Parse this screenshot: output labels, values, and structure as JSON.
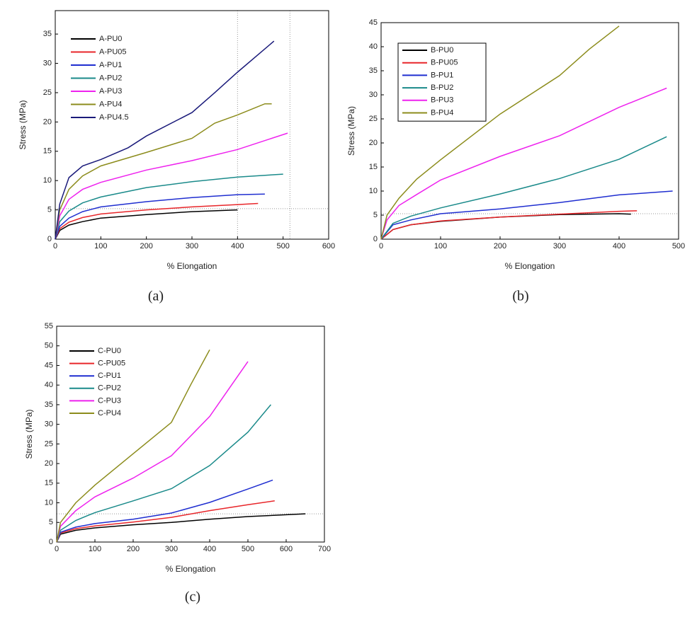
{
  "chart_data": [
    {
      "type": "line",
      "caption": "(a)",
      "x_label": "% Elongation",
      "y_label": "Stress (MPa)",
      "xlim": [
        0,
        600
      ],
      "xticks": [
        0,
        100,
        200,
        300,
        400,
        500,
        600
      ],
      "ylim": [
        0,
        39
      ],
      "yticks": [
        0,
        5,
        10,
        15,
        20,
        25,
        30,
        35
      ],
      "legend": "upper left",
      "legend_frame": false,
      "ref_lines": [
        {
          "axis": "x",
          "value": 400
        },
        {
          "axis": "x",
          "value": 515
        },
        {
          "axis": "y",
          "value": 5.2
        }
      ],
      "series": [
        {
          "name": "A-PU0",
          "color": "#000000",
          "x": [
            0,
            10,
            30,
            60,
            100,
            200,
            300,
            400
          ],
          "values": [
            0,
            1.5,
            2.4,
            3.0,
            3.6,
            4.2,
            4.7,
            5.0
          ]
        },
        {
          "name": "A-PU05",
          "color": "#e8262a",
          "x": [
            0,
            10,
            30,
            60,
            100,
            200,
            300,
            400,
            445
          ],
          "values": [
            0,
            1.8,
            2.9,
            3.7,
            4.3,
            5.0,
            5.5,
            5.9,
            6.1
          ]
        },
        {
          "name": "A-PU1",
          "color": "#1f2ed0",
          "x": [
            0,
            10,
            30,
            60,
            100,
            200,
            300,
            400,
            460
          ],
          "values": [
            0,
            2.2,
            3.6,
            4.7,
            5.5,
            6.4,
            7.1,
            7.6,
            7.7
          ]
        },
        {
          "name": "A-PU2",
          "color": "#1a8a8a",
          "x": [
            0,
            10,
            30,
            60,
            100,
            200,
            300,
            400,
            500
          ],
          "values": [
            0,
            3,
            4.8,
            6.2,
            7.2,
            8.8,
            9.8,
            10.6,
            11.1
          ]
        },
        {
          "name": "A-PU3",
          "color": "#ee22ee",
          "x": [
            0,
            10,
            30,
            60,
            100,
            200,
            300,
            400,
            510
          ],
          "values": [
            0,
            4,
            6.8,
            8.5,
            9.7,
            11.8,
            13.4,
            15.3,
            18.1
          ]
        },
        {
          "name": "A-PU4",
          "color": "#8c8c1c",
          "x": [
            0,
            10,
            30,
            60,
            100,
            200,
            300,
            350,
            400,
            460,
            475
          ],
          "values": [
            0,
            5,
            8.5,
            10.8,
            12.5,
            14.8,
            17.2,
            19.8,
            21.2,
            23.1,
            23.1
          ]
        },
        {
          "name": "A-PU4.5",
          "color": "#1a1a7a",
          "x": [
            0,
            10,
            30,
            60,
            100,
            160,
            200,
            300,
            350,
            400,
            480
          ],
          "values": [
            0,
            6,
            10.5,
            12.5,
            13.6,
            15.6,
            17.6,
            21.6,
            25,
            28.5,
            33.8
          ]
        }
      ]
    },
    {
      "type": "line",
      "caption": "(b)",
      "x_label": "% Elongation",
      "y_label": "Stress (MPa)",
      "xlim": [
        0,
        500
      ],
      "xticks": [
        0,
        100,
        200,
        300,
        400,
        500
      ],
      "ylim": [
        0,
        45
      ],
      "yticks": [
        0,
        5,
        10,
        15,
        20,
        25,
        30,
        35,
        40,
        45
      ],
      "legend": "upper left",
      "legend_frame": true,
      "ref_lines": [
        {
          "axis": "y",
          "value": 5.3
        }
      ],
      "series": [
        {
          "name": "B-PU0",
          "color": "#000000",
          "x": [
            0,
            20,
            50,
            100,
            200,
            300,
            400,
            420
          ],
          "values": [
            0,
            2,
            3,
            3.7,
            4.6,
            5.1,
            5.3,
            5.2
          ]
        },
        {
          "name": "B-PU05",
          "color": "#e8262a",
          "x": [
            0,
            20,
            50,
            100,
            200,
            300,
            400,
            430
          ],
          "values": [
            0,
            2,
            3,
            3.8,
            4.6,
            5.2,
            5.8,
            5.9
          ]
        },
        {
          "name": "B-PU1",
          "color": "#1f2ed0",
          "x": [
            0,
            20,
            50,
            100,
            200,
            300,
            400,
            490
          ],
          "values": [
            0,
            3,
            4,
            5.3,
            6.3,
            7.6,
            9.2,
            10
          ]
        },
        {
          "name": "B-PU2",
          "color": "#1a8a8a",
          "x": [
            0,
            20,
            50,
            100,
            200,
            300,
            400,
            480
          ],
          "values": [
            0,
            3.3,
            4.8,
            6.5,
            9.4,
            12.6,
            16.6,
            21.3
          ]
        },
        {
          "name": "B-PU3",
          "color": "#ee22ee",
          "x": [
            0,
            10,
            30,
            60,
            100,
            200,
            300,
            400,
            480
          ],
          "values": [
            0,
            4,
            7,
            9.3,
            12.3,
            17.2,
            21.5,
            27.4,
            31.4
          ]
        },
        {
          "name": "B-PU4",
          "color": "#8c8c1c",
          "x": [
            0,
            10,
            30,
            60,
            100,
            200,
            300,
            350,
            400
          ],
          "values": [
            0,
            5,
            8.5,
            12.5,
            16.5,
            26,
            34,
            39.5,
            44.3
          ]
        }
      ]
    },
    {
      "type": "line",
      "caption": "(c)",
      "x_label": "% Elongation",
      "y_label": "Stress (MPa)",
      "xlim": [
        0,
        700
      ],
      "xticks": [
        0,
        100,
        200,
        300,
        400,
        500,
        600,
        700
      ],
      "ylim": [
        0,
        55
      ],
      "yticks": [
        0,
        5,
        10,
        15,
        20,
        25,
        30,
        35,
        40,
        45,
        50,
        55
      ],
      "legend": "upper left",
      "legend_frame": false,
      "ref_lines": [
        {
          "axis": "y",
          "value": 7.2
        }
      ],
      "series": [
        {
          "name": "C-PU0",
          "color": "#000000",
          "x": [
            0,
            10,
            50,
            100,
            200,
            300,
            400,
            500,
            650
          ],
          "values": [
            0,
            2,
            3,
            3.6,
            4.4,
            5,
            5.8,
            6.5,
            7.2
          ]
        },
        {
          "name": "C-PU05",
          "color": "#e8262a",
          "x": [
            0,
            10,
            50,
            100,
            200,
            300,
            400,
            500,
            570
          ],
          "values": [
            0,
            2.3,
            3.4,
            4.1,
            5.1,
            6.3,
            8,
            9.5,
            10.5
          ]
        },
        {
          "name": "C-PU1",
          "color": "#1f2ed0",
          "x": [
            0,
            10,
            50,
            100,
            200,
            300,
            400,
            500,
            565
          ],
          "values": [
            0,
            2.5,
            3.8,
            4.7,
            5.8,
            7.4,
            10.1,
            13.5,
            15.8
          ]
        },
        {
          "name": "C-PU2",
          "color": "#1a8a8a",
          "x": [
            0,
            10,
            50,
            100,
            200,
            300,
            400,
            500,
            560
          ],
          "values": [
            0,
            3,
            5.5,
            7.5,
            10.5,
            13.6,
            19.5,
            28,
            35
          ]
        },
        {
          "name": "C-PU3",
          "color": "#ee22ee",
          "x": [
            0,
            10,
            50,
            100,
            200,
            300,
            400,
            450,
            500
          ],
          "values": [
            0,
            4,
            8,
            11.5,
            16.3,
            22,
            32,
            39,
            46
          ]
        },
        {
          "name": "C-PU4",
          "color": "#8c8c1c",
          "x": [
            0,
            10,
            50,
            100,
            200,
            300,
            350,
            400
          ],
          "values": [
            0,
            5,
            10,
            14.5,
            22.5,
            30.5,
            40,
            49
          ]
        }
      ]
    }
  ]
}
